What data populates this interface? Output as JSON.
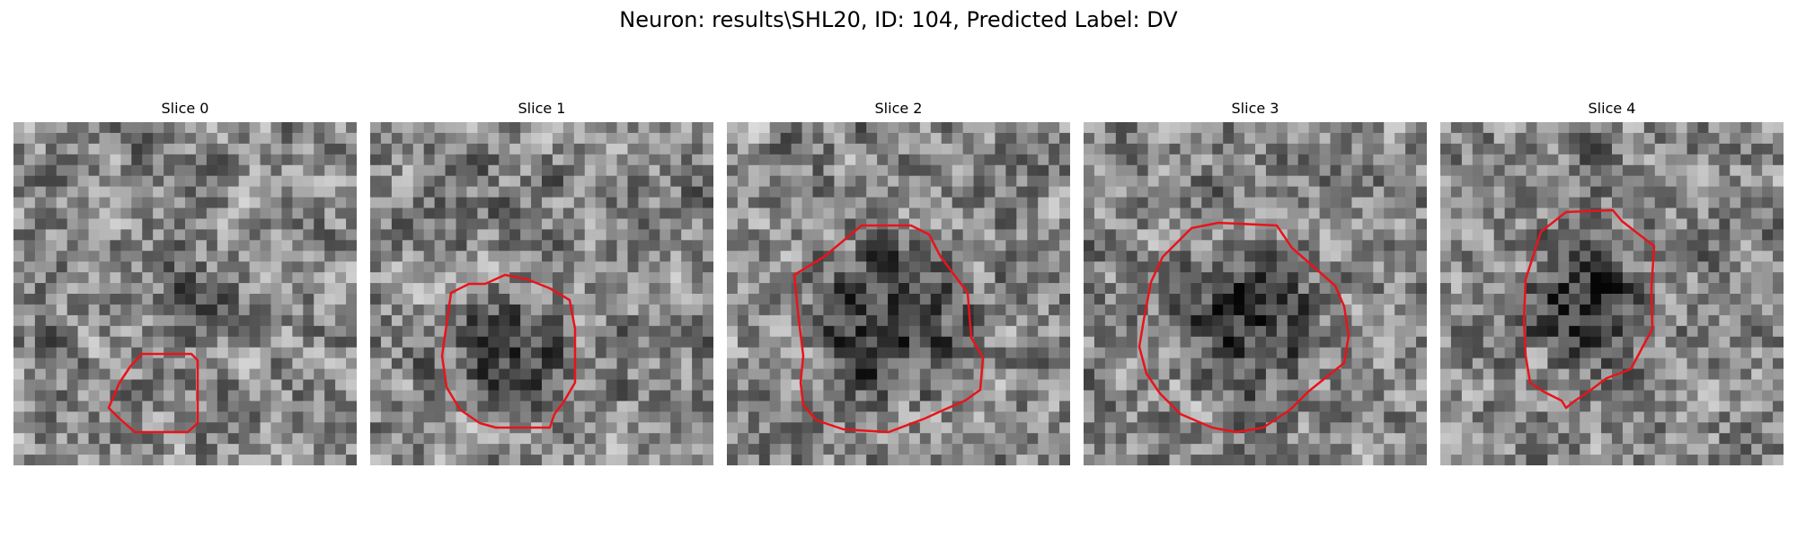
{
  "figure": {
    "title": "Neuron: results\\SHL20, ID: 104, Predicted Label: DV"
  },
  "panels": [
    {
      "title": "Slice 0",
      "roi_color": "#e8141b"
    },
    {
      "title": "Slice 1",
      "roi_color": "#e8141b"
    },
    {
      "title": "Slice 2",
      "roi_color": "#e8141b"
    },
    {
      "title": "Slice 3",
      "roi_color": "#e8141b"
    },
    {
      "title": "Slice 4",
      "roi_color": "#e8141b"
    }
  ]
}
